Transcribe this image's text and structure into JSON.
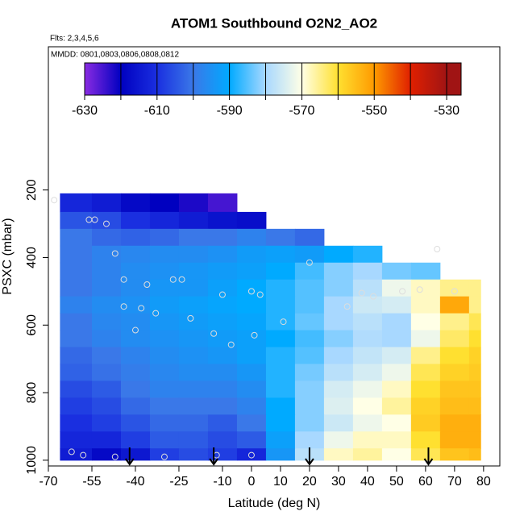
{
  "chart_data": {
    "type": "heatmap",
    "title": "ATOM1 Southbound O2N2_AO2",
    "flights": "Flts: 2,3,4,5,6",
    "dates": "MMDD: 0801,0803,0806,0808,0812",
    "x_label": "Latitude (deg N)",
    "y_label": "PSXC (mbar)",
    "xlim": [
      -70,
      85.6
    ],
    "xticks": [
      -70,
      -55,
      -40,
      -25,
      -10,
      0,
      10,
      20,
      30,
      40,
      50,
      60,
      70,
      80
    ],
    "ylim": [
      1017,
      -224
    ],
    "yticks": [
      200,
      400,
      600,
      800,
      1000
    ],
    "x_edges": [
      -66,
      -55,
      -45,
      -35,
      -25,
      -15,
      -5,
      5,
      15,
      25,
      35,
      45,
      55,
      65,
      75,
      79
    ],
    "y_edges": [
      210,
      265,
      315,
      365,
      415,
      465,
      515,
      565,
      615,
      665,
      715,
      765,
      815,
      865,
      915,
      965,
      1000
    ],
    "z": [
      [
        -612,
        -614,
        -618,
        -620,
        -622,
        -625,
        null,
        null,
        null,
        null,
        null,
        null,
        null,
        null,
        null
      ],
      [
        -605,
        -606,
        -610,
        -612,
        -614,
        -616,
        -617,
        null,
        null,
        null,
        null,
        null,
        null,
        null,
        null
      ],
      [
        -600,
        -602,
        -603,
        -602,
        -600,
        -600,
        -598,
        -600,
        -602,
        null,
        null,
        null,
        null,
        null,
        null
      ],
      [
        -600,
        -598,
        -597,
        -596,
        -596,
        -595,
        -593,
        -592,
        -593,
        -590,
        -588,
        null,
        null,
        null,
        null
      ],
      [
        -600,
        -598,
        -596,
        -595,
        -594,
        -593,
        -592,
        -590,
        -586,
        -582,
        -580,
        -583,
        -584,
        null,
        null
      ],
      [
        -600,
        -598,
        -596,
        -594,
        -594,
        -592,
        -590,
        -588,
        -585,
        -582,
        -578,
        -572,
        -568,
        -565,
        -565
      ],
      [
        -598,
        -596,
        -595,
        -593,
        -592,
        -591,
        -590,
        -588,
        -585,
        -580,
        -576,
        -575,
        -568,
        -552,
        -565
      ],
      [
        -600,
        -597,
        -596,
        -594,
        -593,
        -592,
        -591,
        -588,
        -584,
        -580,
        -578,
        -580,
        -570,
        -565,
        -562
      ],
      [
        -600,
        -598,
        -596,
        -595,
        -594,
        -593,
        -592,
        -590,
        -586,
        -582,
        -579,
        -580,
        -572,
        -563,
        -560
      ],
      [
        -602,
        -600,
        -598,
        -596,
        -595,
        -594,
        -592,
        -588,
        -585,
        -580,
        -577,
        -575,
        -565,
        -560,
        -558
      ],
      [
        -603,
        -601,
        -599,
        -597,
        -596,
        -596,
        -594,
        -588,
        -583,
        -578,
        -575,
        -572,
        -562,
        -558,
        -557
      ],
      [
        -606,
        -604,
        -600,
        -598,
        -598,
        -598,
        -596,
        -588,
        -582,
        -575,
        -572,
        -568,
        -560,
        -556,
        -556
      ],
      [
        -608,
        -606,
        -602,
        -600,
        -600,
        -600,
        -598,
        -590,
        -582,
        -574,
        -570,
        -566,
        -558,
        -555,
        -555
      ],
      [
        -610,
        -608,
        -605,
        -602,
        -602,
        -604,
        -600,
        -590,
        -582,
        -576,
        -572,
        -570,
        -557,
        -553,
        -553
      ],
      [
        -612,
        -612,
        -608,
        -604,
        -604,
        -606,
        -604,
        -592,
        -580,
        -572,
        -568,
        -568,
        -560,
        -553,
        -553
      ],
      [
        -614,
        -618,
        -615,
        -608,
        -606,
        -608,
        -612,
        -594,
        -578,
        -568,
        -566,
        -570,
        -562,
        -556,
        -555
      ]
    ],
    "colorbar_lim": [
      -630,
      -526
    ],
    "colorbar_ticks": [
      -630,
      -610,
      -590,
      -570,
      -550,
      -530
    ],
    "color_stops": [
      -630,
      -620,
      -610,
      -600,
      -590,
      -580,
      -570,
      -560,
      -550,
      -540,
      -530
    ],
    "colors": [
      "#8a2be2",
      "#0000c0",
      "#1a2fe0",
      "#3a78e8",
      "#00aaff",
      "#a8d8ff",
      "#ffffe6",
      "#ffe030",
      "#ff9a00",
      "#e02000",
      "#a01414"
    ],
    "points": {
      "x": [
        -68,
        -56,
        -54,
        -50,
        -47,
        -44,
        -44,
        -40,
        -38,
        -36,
        -33,
        -27,
        -24,
        -21,
        -13,
        -10,
        -7,
        0,
        1,
        3,
        11,
        20,
        33,
        38,
        42,
        52,
        58,
        64,
        70,
        -62,
        -58,
        -47,
        -30,
        -12,
        0
      ],
      "y": [
        230,
        288,
        288,
        300,
        388,
        465,
        545,
        615,
        550,
        480,
        565,
        465,
        465,
        580,
        625,
        510,
        658,
        500,
        630,
        510,
        590,
        415,
        545,
        505,
        515,
        500,
        495,
        375,
        500,
        975,
        985,
        990,
        990,
        985,
        985
      ]
    },
    "arrows_x": [
      -42,
      -13,
      20,
      61
    ]
  }
}
